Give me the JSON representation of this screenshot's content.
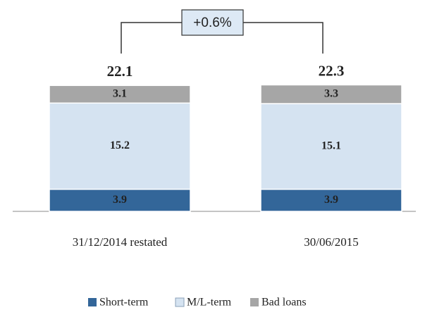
{
  "chart_data": {
    "type": "stacked_bar",
    "categories": [
      "31/12/2014 restated",
      "30/06/2015"
    ],
    "series": [
      {
        "name": "Short-term",
        "color": "#336699",
        "values": [
          3.9,
          3.9
        ]
      },
      {
        "name": "M/L-term",
        "color": "#d5e3f1",
        "values": [
          15.2,
          15.1
        ]
      },
      {
        "name": "Bad loans",
        "color": "#a6a6a6",
        "values": [
          3.1,
          3.3
        ]
      }
    ],
    "totals": [
      22.1,
      22.3
    ],
    "annotation": "+0.6%",
    "legend": "bottom"
  }
}
